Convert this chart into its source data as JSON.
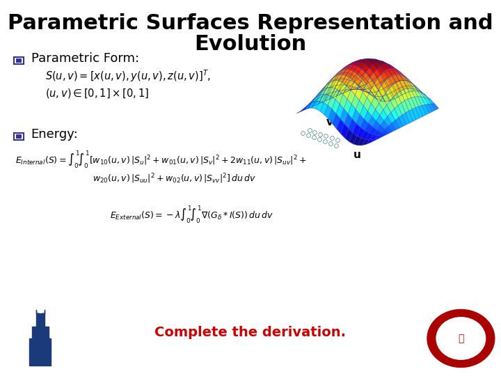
{
  "title_line1": "Parametric Surfaces Representation and",
  "title_line2": "Evolution",
  "title_fontsize": 22,
  "title_fontweight": "bold",
  "bg_color": "#ffffff",
  "text_color": "#000000",
  "red_color": "#cc0000",
  "blue_color": "#1a1aff",
  "section1_label": "Parametric Form:",
  "eq1": "$S(u, v) = [x(u,v), y(u,v), z(u,v)]^T,$",
  "eq2": "$(u, v) \\in [0,1]\\times[0,1]$",
  "section2_label": "Energy:",
  "eq3": "$E_{Internal}(S) = \\int_0^1\\!\\int_0^1 [w_{10}(u,v)\\,|S_u|^2 + w_{01}(u,v)\\,|S_v|^2 + 2w_{11}(u,v)\\,|S_{uv}|^2 +$",
  "eq4": "$w_{20}(u,v)\\,|S_{uu}|^2 + w_{02}(u,v)\\,|S_{vv}|^2]\\,du\\,dv$",
  "eq5": "$E_{External}(S) = -\\lambda\\int_0^1\\!\\int_0^1 \\nabla(G_\\delta * I(S))\\,du\\,dv$",
  "cta_text": "Complete the derivation.",
  "axis_label_v": "v",
  "axis_label_u": "u",
  "bullet_color": "#333399"
}
